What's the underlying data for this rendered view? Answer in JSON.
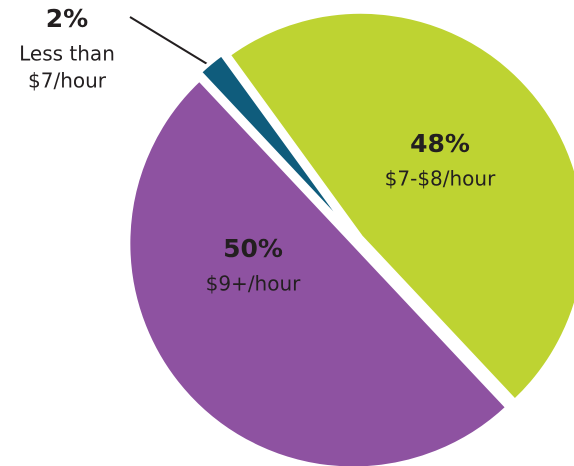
{
  "chart_data": {
    "type": "pie",
    "categories": [
      "Less than $7/hour",
      "$7-$8/hour",
      "$9+/hour"
    ],
    "category_lines": [
      [
        "Less than",
        "$7/hour"
      ],
      [
        "$7-$8/hour"
      ],
      [
        "$9+/hour"
      ]
    ],
    "values": [
      2,
      48,
      50
    ],
    "value_labels": [
      "2%",
      "48%",
      "50%"
    ],
    "colors": [
      "#0f5c7c",
      "#bed332",
      "#8e52a1"
    ]
  }
}
